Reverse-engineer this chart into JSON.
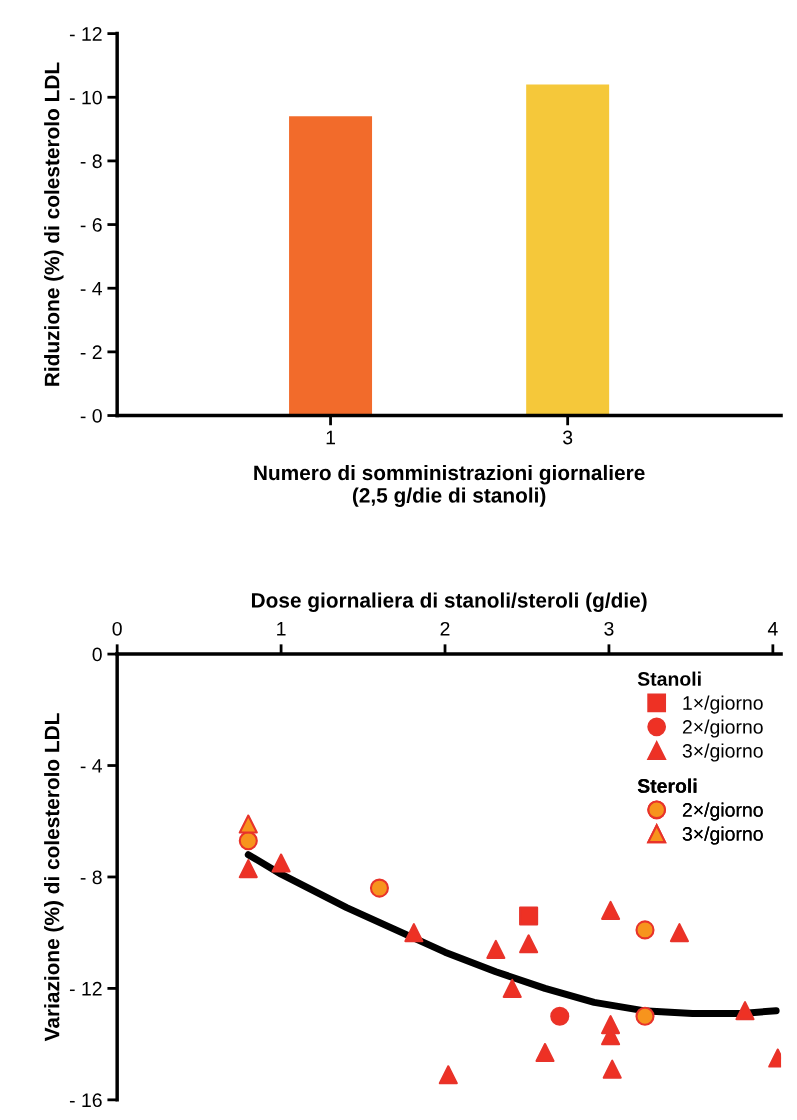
{
  "chart_data": [
    {
      "type": "bar",
      "categories": [
        "1",
        "3"
      ],
      "values": [
        -9.4,
        -10.4
      ],
      "colors": [
        "#f26b2b",
        "#f5c83a"
      ],
      "xlabel": "Numero di somministrazioni giornaliere\n(2,5 g/die di stanoli)",
      "ylabel": "Riduzione (%) di colesterolo LDL",
      "ylim": [
        0,
        -12
      ],
      "yticks": [
        {
          "value": 0,
          "label": "- 0"
        },
        {
          "value": -2,
          "label": "- 2"
        },
        {
          "value": -4,
          "label": "- 4"
        },
        {
          "value": -6,
          "label": "- 6"
        },
        {
          "value": -8,
          "label": "- 8"
        },
        {
          "value": -10,
          "label": "- 10"
        },
        {
          "value": -12,
          "label": "- 12"
        }
      ]
    },
    {
      "type": "scatter",
      "xlabel": "Dose giornaliera di stanoli/steroli (g/die)",
      "ylabel": "Variazione (%) di colesterolo LDL",
      "xlim": [
        0,
        4.05
      ],
      "xticks": [
        0,
        1,
        2,
        3,
        4
      ],
      "ylim": [
        -16,
        0
      ],
      "yticks": [
        {
          "value": -16,
          "label": "- 16"
        },
        {
          "value": -12,
          "label": "- 12"
        },
        {
          "value": -8,
          "label": "- 8"
        },
        {
          "value": -4,
          "label": "- 4"
        },
        0
      ],
      "legend": "top right",
      "annotations": [
        "Stanoli",
        "Steroli"
      ],
      "series": [
        {
          "name": "1×/giorno",
          "color": "#ee3124",
          "marker": "square",
          "x": [
            2.51
          ],
          "values": [
            -9.4
          ]
        },
        {
          "name": "2×/giorno",
          "color": "#ee3124",
          "marker": "circle",
          "x": [
            2.7
          ],
          "values": [
            -13.0
          ]
        },
        {
          "name": "3×/giorno",
          "color": "#ee3124",
          "marker": "triangle",
          "x": [
            0.8,
            1.0,
            1.81,
            2.31,
            2.51,
            2.41,
            3.01,
            3.43,
            2.02,
            2.61,
            3.01,
            3.01,
            3.02,
            3.83,
            4.03
          ],
          "values": [
            -7.7,
            -7.5,
            -10.0,
            -10.6,
            -10.4,
            -12.0,
            -9.2,
            -10.0,
            -15.1,
            -14.3,
            -13.3,
            -13.7,
            -14.9,
            -12.8,
            -14.5
          ]
        },
        {
          "name": "2×/giorno",
          "color": "#f7941d",
          "marker": "circle",
          "x": [
            0.8,
            1.6,
            3.22,
            3.22
          ],
          "values": [
            -6.7,
            -8.4,
            -9.9,
            -13.0
          ]
        },
        {
          "name": "3×/giorno",
          "color": "#f7941d",
          "marker": "triangle",
          "x": [
            0.8
          ],
          "values": [
            -6.1
          ]
        },
        {
          "type": "line",
          "color": "#000000",
          "x": [
            0.8,
            1.0,
            1.4,
            1.7,
            2.0,
            2.31,
            2.61,
            2.91,
            3.21,
            3.51,
            3.81,
            4.02
          ],
          "values": [
            -7.2,
            -7.9,
            -9.1,
            -9.9,
            -10.7,
            -11.4,
            -12.0,
            -12.5,
            -12.8,
            -12.9,
            -12.9,
            -12.8
          ]
        }
      ]
    }
  ]
}
